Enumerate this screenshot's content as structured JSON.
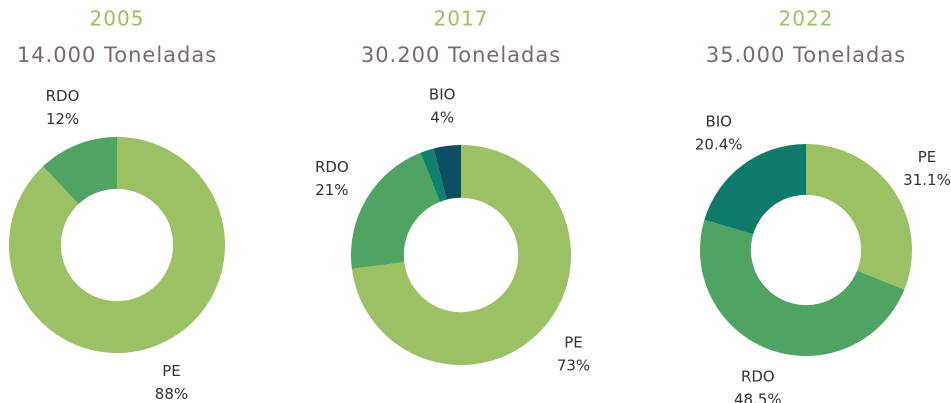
{
  "chart_data": [
    {
      "type": "donut",
      "title": "2005",
      "subtitle": "14.000 Toneladas",
      "categories": [
        "PE",
        "RDO"
      ],
      "values": [
        88,
        12
      ],
      "value_labels": [
        "88%",
        "12%"
      ],
      "colors": [
        "#9cc165",
        "#4fa463"
      ]
    },
    {
      "type": "donut",
      "title": "2017",
      "subtitle": "30.200 Toneladas",
      "categories": [
        "PE",
        "RDO",
        null,
        "BIO"
      ],
      "values": [
        73,
        21,
        2,
        4
      ],
      "value_labels": [
        "73%",
        "21%",
        null,
        "4%"
      ],
      "colors": [
        "#9cc165",
        "#4fa463",
        "#10806f",
        "#0b4f63"
      ]
    },
    {
      "type": "donut",
      "title": "2022",
      "subtitle": "35.000 Toneladas",
      "categories": [
        "PE",
        "RDO",
        "BIO"
      ],
      "values": [
        31.1,
        48.5,
        20.4
      ],
      "value_labels": [
        "31.1%",
        "48.5%",
        "20.4%"
      ],
      "colors": [
        "#9cc165",
        "#4fa463",
        "#0f7a6a"
      ]
    }
  ]
}
